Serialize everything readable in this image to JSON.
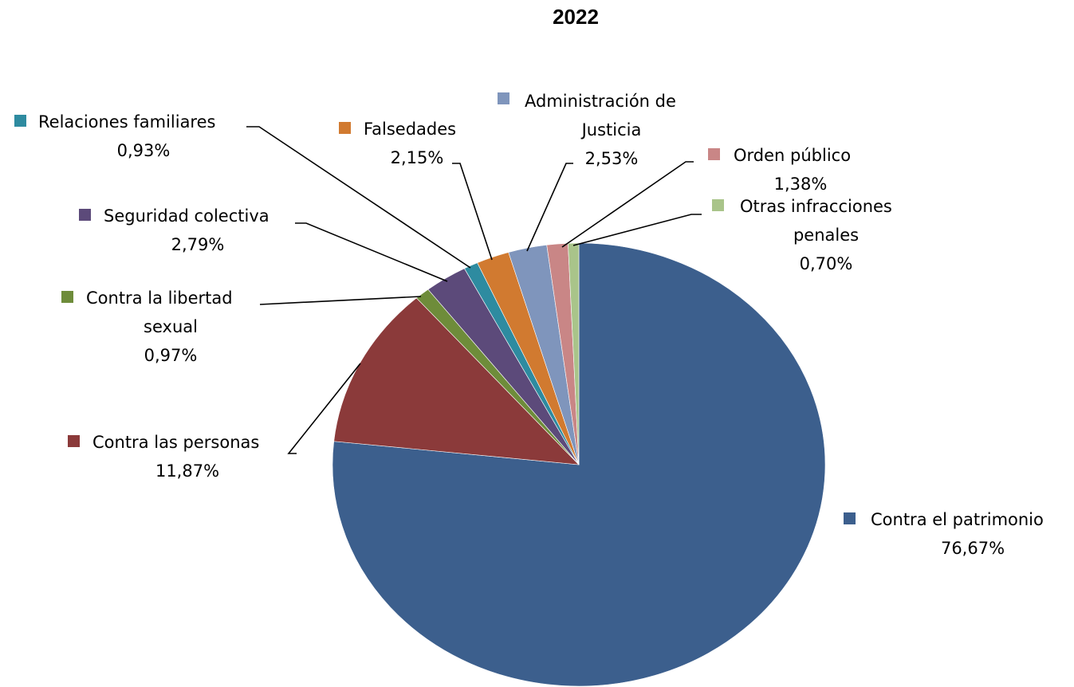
{
  "chart_data": {
    "type": "pie",
    "title": "2022",
    "start_angle_deg": 0,
    "direction": "clockwise",
    "legend": "none",
    "slices": [
      {
        "label_lines": [
          "Contra el patrimonio"
        ],
        "value_label": "76,67%",
        "value": 76.67,
        "color": "#3C5F8D"
      },
      {
        "label_lines": [
          "Contra las personas"
        ],
        "value_label": "11,87%",
        "value": 11.87,
        "color": "#8B3A3A"
      },
      {
        "label_lines": [
          "Contra la libertad",
          "sexual"
        ],
        "value_label": "0,97%",
        "value": 0.97,
        "color": "#6E8C3A"
      },
      {
        "label_lines": [
          "Seguridad colectiva"
        ],
        "value_label": "2,79%",
        "value": 2.79,
        "color": "#5C4A7A"
      },
      {
        "label_lines": [
          "Relaciones familiares"
        ],
        "value_label": "0,93%",
        "value": 0.93,
        "color": "#2E8BA0"
      },
      {
        "label_lines": [
          "Falsedades"
        ],
        "value_label": "2,15%",
        "value": 2.15,
        "color": "#D17A30"
      },
      {
        "label_lines": [
          "Administración de",
          "Justicia"
        ],
        "value_label": "2,53%",
        "value": 2.53,
        "color": "#7F95BC"
      },
      {
        "label_lines": [
          "Orden público"
        ],
        "value_label": "1,38%",
        "value": 1.38,
        "color": "#C98686"
      },
      {
        "label_lines": [
          "Otras infracciones",
          "penales"
        ],
        "value_label": "0,70%",
        "value": 0.7,
        "color": "#A9C48A"
      }
    ]
  }
}
